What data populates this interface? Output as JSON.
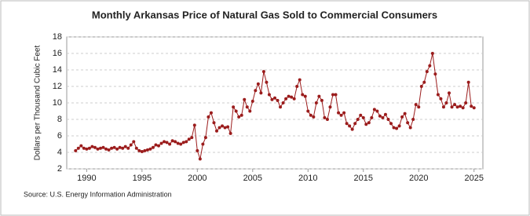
{
  "chart_data": {
    "type": "line",
    "title": "Monthly Arkansas Price of Natural Gas Sold to Commercial Consumers",
    "ylabel": "Dollars per Thousand Cubic Feet",
    "source": "Source: U.S. Energy Information Administration",
    "x": [
      1989,
      1989.25,
      1989.5,
      1989.75,
      1990,
      1990.25,
      1990.5,
      1990.75,
      1991,
      1991.25,
      1991.5,
      1991.75,
      1992,
      1992.25,
      1992.5,
      1992.75,
      1993,
      1993.25,
      1993.5,
      1993.75,
      1994,
      1994.25,
      1994.5,
      1994.75,
      1995,
      1995.25,
      1995.5,
      1995.75,
      1996,
      1996.25,
      1996.5,
      1996.75,
      1997,
      1997.25,
      1997.5,
      1997.75,
      1998,
      1998.25,
      1998.5,
      1998.75,
      1999,
      1999.25,
      1999.5,
      1999.75,
      2000,
      2000.25,
      2000.5,
      2000.75,
      2001,
      2001.25,
      2001.5,
      2001.75,
      2002,
      2002.25,
      2002.5,
      2002.75,
      2003,
      2003.25,
      2003.5,
      2003.75,
      2004,
      2004.25,
      2004.5,
      2004.75,
      2005,
      2005.25,
      2005.5,
      2005.75,
      2006,
      2006.25,
      2006.5,
      2006.75,
      2007,
      2007.25,
      2007.5,
      2007.75,
      2008,
      2008.25,
      2008.5,
      2008.75,
      2009,
      2009.25,
      2009.5,
      2009.75,
      2010,
      2010.25,
      2010.5,
      2010.75,
      2011,
      2011.25,
      2011.5,
      2011.75,
      2012,
      2012.25,
      2012.5,
      2012.75,
      2013,
      2013.25,
      2013.5,
      2013.75,
      2014,
      2014.25,
      2014.5,
      2014.75,
      2015,
      2015.25,
      2015.5,
      2015.75,
      2016,
      2016.25,
      2016.5,
      2016.75,
      2017,
      2017.25,
      2017.5,
      2017.75,
      2018,
      2018.25,
      2018.5,
      2018.75,
      2019,
      2019.25,
      2019.5,
      2019.75,
      2020,
      2020.25,
      2020.5,
      2020.75,
      2021,
      2021.25,
      2021.5,
      2021.75,
      2022,
      2022.25,
      2022.5,
      2022.75,
      2023,
      2023.25,
      2023.5,
      2023.75,
      2024,
      2024.25,
      2024.5,
      2024.75,
      2025
    ],
    "series": [
      {
        "name": "Arkansas Price of Natural Gas Sold to Commercial Consumers",
        "color": "#9b1c1c",
        "values": [
          4.2,
          4.5,
          4.8,
          4.5,
          4.4,
          4.5,
          4.7,
          4.6,
          4.4,
          4.5,
          4.6,
          4.4,
          4.3,
          4.5,
          4.6,
          4.4,
          4.6,
          4.5,
          4.7,
          4.5,
          4.9,
          5.3,
          4.5,
          4.2,
          4.1,
          4.2,
          4.3,
          4.4,
          4.6,
          4.9,
          4.8,
          5.1,
          5.3,
          5.2,
          5.0,
          5.4,
          5.3,
          5.1,
          5.0,
          5.2,
          5.3,
          5.6,
          5.8,
          7.3,
          4.2,
          3.2,
          5.0,
          5.8,
          8.3,
          8.8,
          7.6,
          6.6,
          7.0,
          7.2,
          7.0,
          7.1,
          6.3,
          9.5,
          9.0,
          8.3,
          8.5,
          10.4,
          9.5,
          9.0,
          10.2,
          11.5,
          12.3,
          11.2,
          13.8,
          12.5,
          11.0,
          10.4,
          10.6,
          10.3,
          9.5,
          10.0,
          10.5,
          10.8,
          10.7,
          10.5,
          12.0,
          12.8,
          11.0,
          10.8,
          9.0,
          8.5,
          8.3,
          10.0,
          10.8,
          10.3,
          8.2,
          8.0,
          9.5,
          11.0,
          11.0,
          8.8,
          8.5,
          8.8,
          7.5,
          7.2,
          6.8,
          7.5,
          8.0,
          8.5,
          8.2,
          7.4,
          7.6,
          8.2,
          9.2,
          9.0,
          8.4,
          8.2,
          8.6,
          8.0,
          7.5,
          7.0,
          6.9,
          7.2,
          8.3,
          8.7,
          7.6,
          7.0,
          8.0,
          9.8,
          9.5,
          12.0,
          12.5,
          13.8,
          14.5,
          16.0,
          13.5,
          11.0,
          10.5,
          9.5,
          10.0,
          11.2,
          9.5,
          9.8,
          9.5,
          9.6,
          9.4,
          10.0,
          12.5,
          9.6,
          9.4
        ]
      }
    ],
    "xlim": [
      1988.2,
      2025.8
    ],
    "ylim": [
      2,
      18
    ],
    "xticks": [
      1990,
      1995,
      2000,
      2005,
      2010,
      2015,
      2020,
      2025
    ],
    "yticks": [
      2,
      4,
      6,
      8,
      10,
      12,
      14,
      16,
      18
    ],
    "grid": true
  }
}
